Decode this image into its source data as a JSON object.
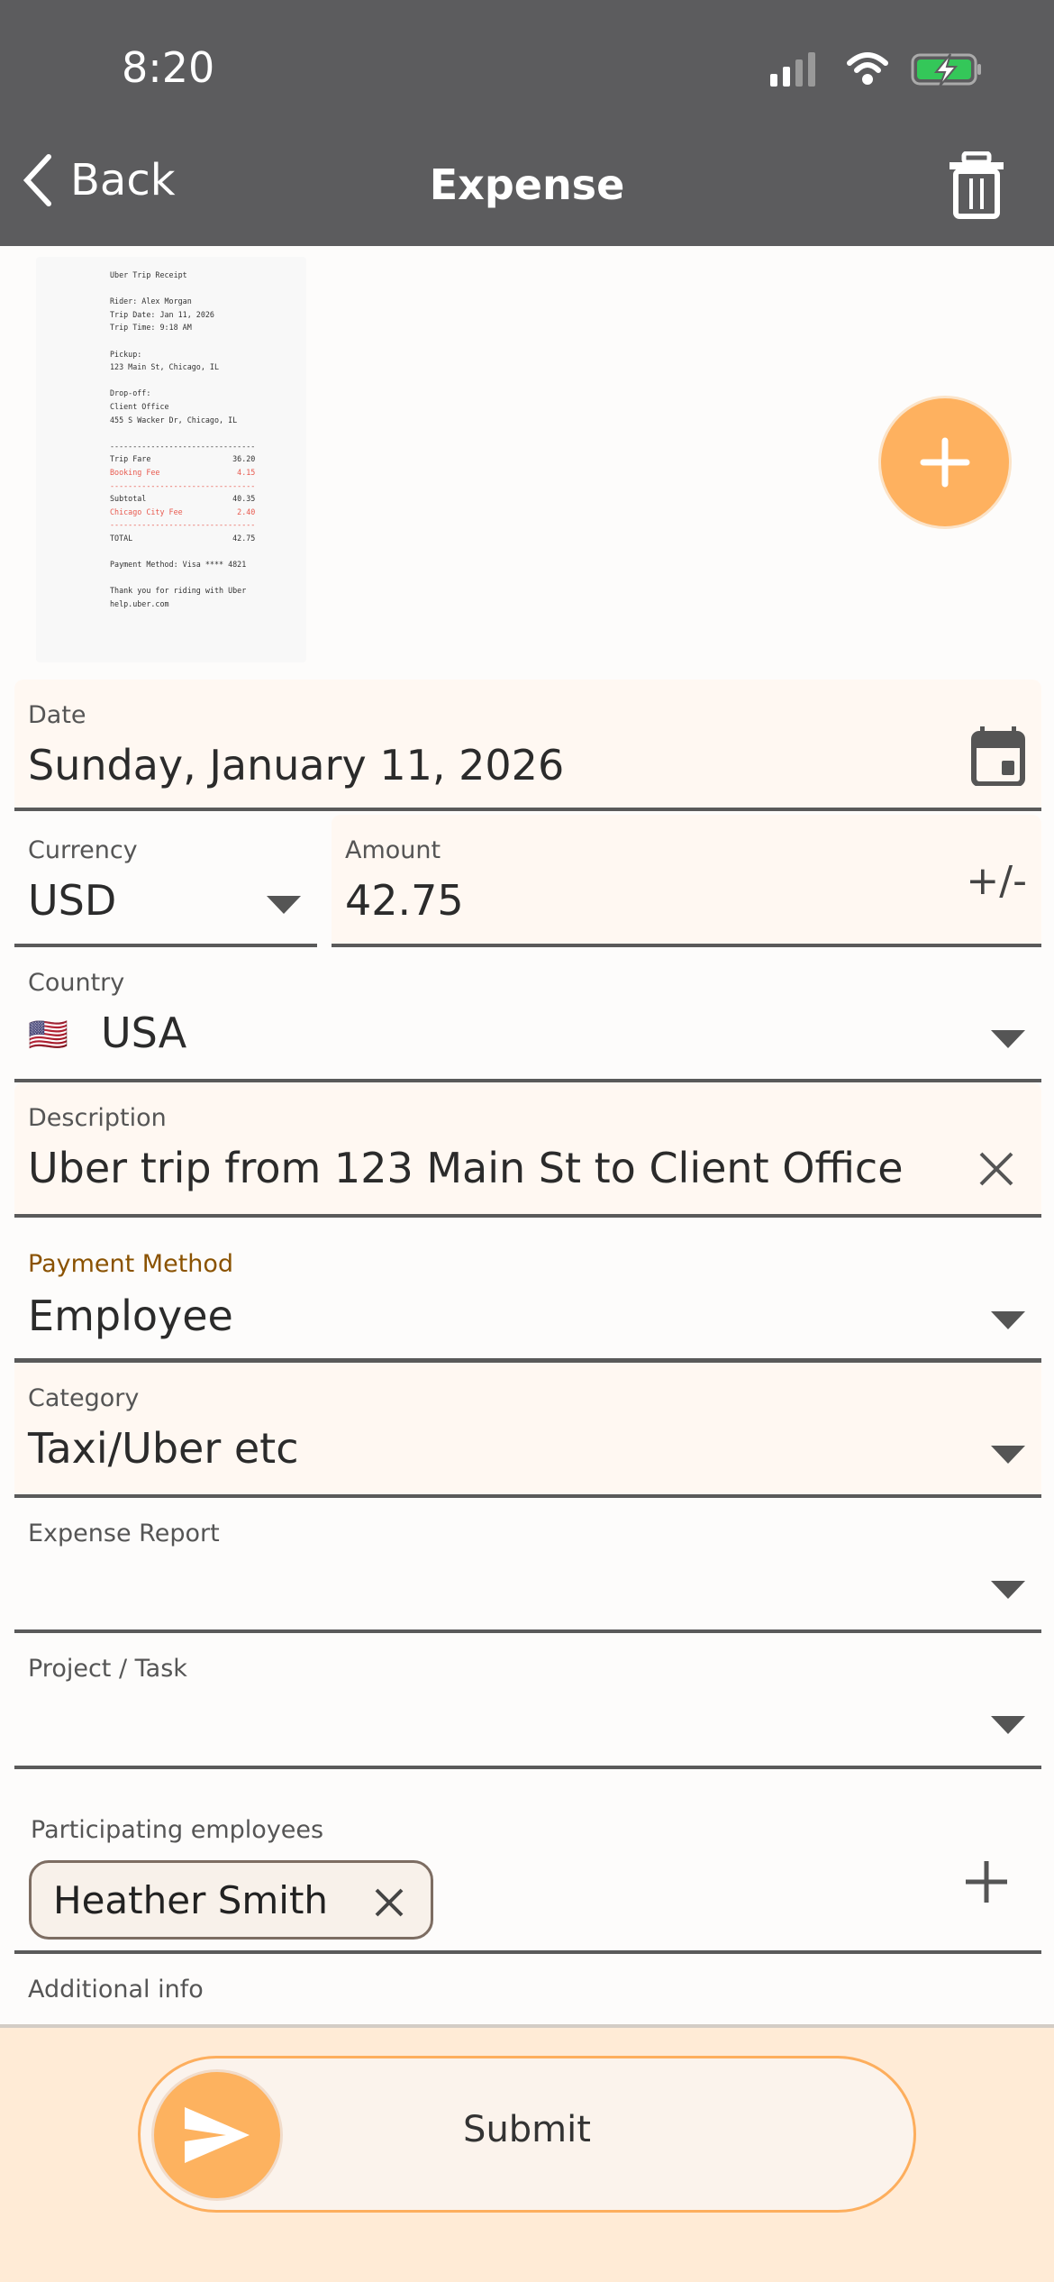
{
  "status_bar": {
    "time": "8:20"
  },
  "nav": {
    "back_label": "Back",
    "title": "Expense"
  },
  "receipt": {
    "lines": [
      "Uber Trip Receipt",
      "",
      "Rider: Alex Morgan",
      "Trip Date: Jan 11, 2026",
      "Trip Time: 9:18 AM",
      "",
      "Pickup:",
      "123 Main St, Chicago, IL",
      "",
      "Drop-off:",
      "Client Office",
      "455 S Wacker Dr, Chicago, IL",
      "",
      "--------------------------------",
      "Trip Fare                  36.20",
      "Booking Fee                 4.15",
      "--------------------------------",
      "Subtotal                   40.35",
      "Chicago City Fee            2.40",
      "--------------------------------",
      "TOTAL                      42.75",
      "",
      "Payment Method: Visa **** 4821",
      "",
      "Thank you for riding with Uber",
      "help.uber.com"
    ],
    "red_lines": [
      15,
      16,
      18,
      19
    ]
  },
  "form": {
    "date": {
      "label": "Date",
      "value": "Sunday, January 11, 2026"
    },
    "currency": {
      "label": "Currency",
      "value": "USD"
    },
    "amount": {
      "label": "Amount",
      "value": "42.75",
      "sign_toggle": "+/-"
    },
    "country": {
      "label": "Country",
      "flag": "🇺🇸",
      "value": "USA"
    },
    "description": {
      "label": "Description",
      "value": "Uber trip from 123 Main St to Client Office"
    },
    "payment_method": {
      "label": "Payment Method",
      "value": "Employee"
    },
    "category": {
      "label": "Category",
      "value": "Taxi/Uber etc"
    },
    "expense_report": {
      "label": "Expense Report",
      "value": ""
    },
    "project_task": {
      "label": "Project / Task",
      "value": ""
    },
    "participants": {
      "label": "Participating employees",
      "chips": [
        "Heather Smith"
      ]
    },
    "additional_info": {
      "label": "Additional info"
    }
  },
  "submit": {
    "label": "Submit"
  },
  "colors": {
    "accent": "#feb15f",
    "header": "#5c5c5e",
    "field_tint": "#fff8f2",
    "footer": "#ffebd6",
    "focus_label": "#8a5200"
  }
}
